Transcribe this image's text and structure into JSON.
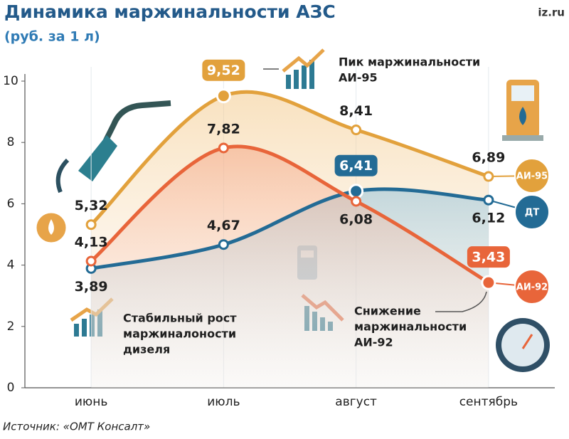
{
  "chart_data": {
    "type": "line",
    "title": "Динамика маржинальности АЗС",
    "subtitle": "(руб. за 1 л)",
    "brand": "iz.ru",
    "source": "Источник: «ОМТ Консалт»",
    "categories": [
      "июнь",
      "июль",
      "август",
      "сентябрь"
    ],
    "ylim": [
      0,
      10
    ],
    "yticks": [
      0,
      2,
      4,
      6,
      8,
      10
    ],
    "series": [
      {
        "name": "АИ-95",
        "color": "#e2a13c",
        "values": [
          5.32,
          9.52,
          8.41,
          6.89
        ],
        "value_labels": [
          "5,32",
          "9,52",
          "8,41",
          "6,89"
        ]
      },
      {
        "name": "ДТ",
        "color": "#236b95",
        "values": [
          3.89,
          4.67,
          6.41,
          6.12
        ],
        "value_labels": [
          "3,89",
          "4,67",
          "6,41",
          "6,12"
        ]
      },
      {
        "name": "АИ-92",
        "color": "#e8653a",
        "values": [
          4.13,
          7.82,
          6.08,
          3.43
        ],
        "value_labels": [
          "4,13",
          "7,82",
          "6,08",
          "3,43"
        ]
      }
    ],
    "annotations": [
      {
        "lines": [
          "Пик маржинальности",
          "АИ-95"
        ]
      },
      {
        "lines": [
          "Стабильный рост",
          "маржиналоности",
          "дизеля"
        ]
      },
      {
        "lines": [
          "Снижение",
          "маржинальности",
          "АИ-92"
        ]
      }
    ]
  }
}
